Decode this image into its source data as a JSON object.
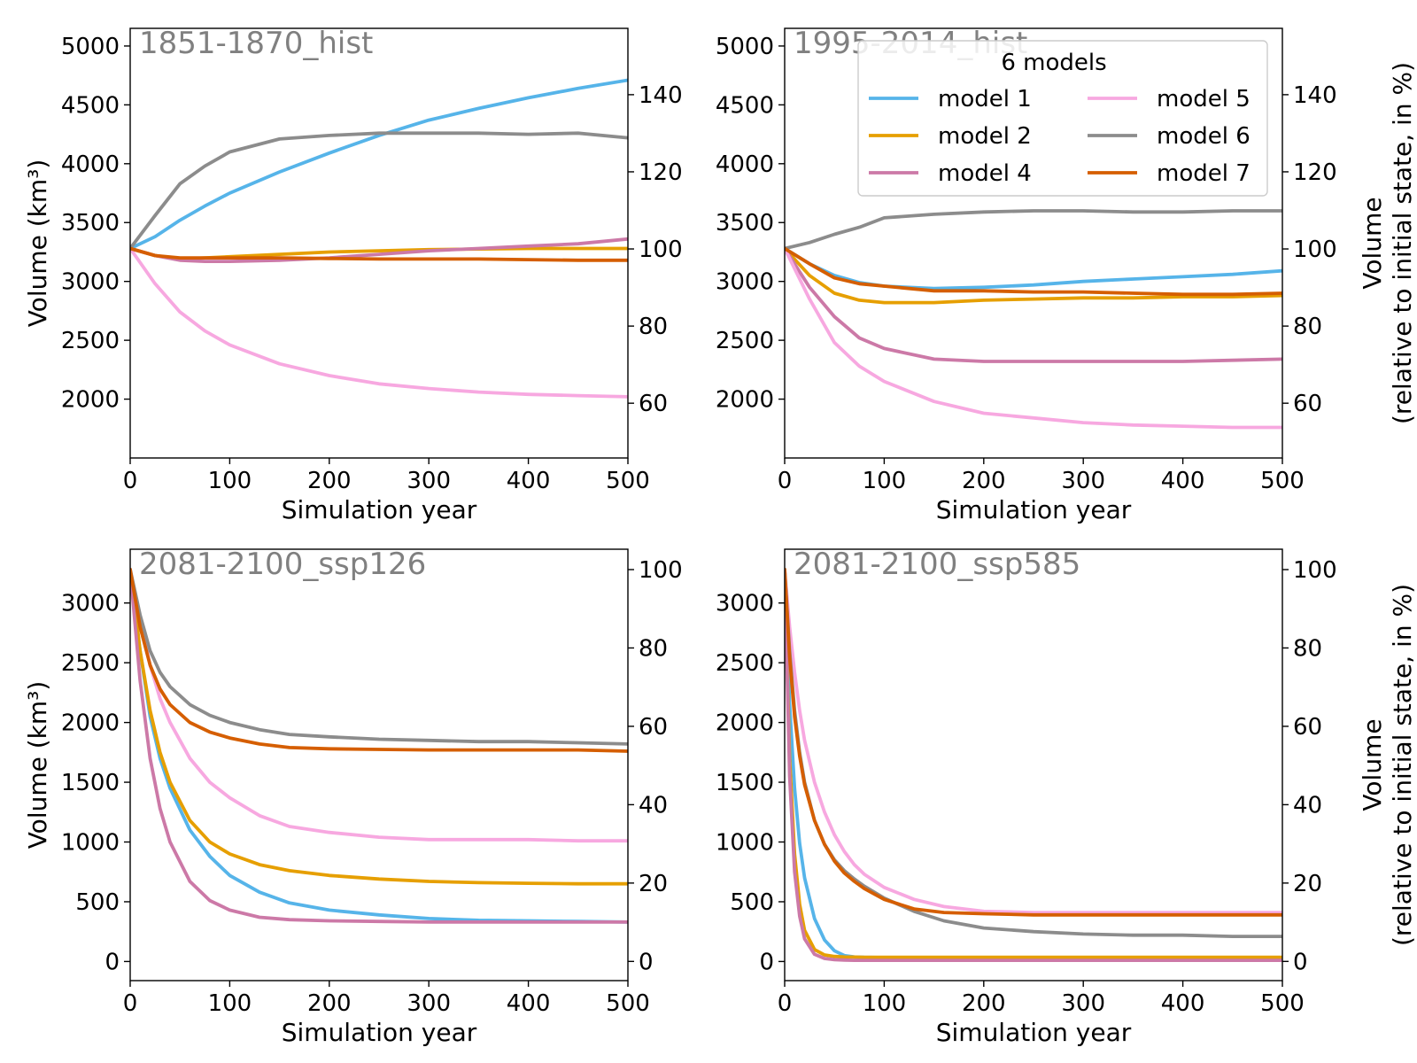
{
  "chart_data": [
    {
      "type": "line",
      "title": "1851-1870_hist",
      "xlabel": "Simulation year",
      "ylabel": "Volume (km³)",
      "ylabel_right": "",
      "xlim": [
        0,
        500
      ],
      "ylim": [
        1500,
        5150
      ],
      "ylim_right": [
        45.8,
        157.2
      ],
      "xticks": [
        0,
        100,
        200,
        300,
        400,
        500
      ],
      "yticks": [
        2000,
        2500,
        3000,
        3500,
        4000,
        4500,
        5000
      ],
      "yticks_right": [
        60,
        80,
        100,
        120,
        140
      ],
      "grid": false,
      "x": [
        0,
        25,
        50,
        75,
        100,
        150,
        200,
        250,
        300,
        350,
        400,
        450,
        500
      ],
      "series": [
        {
          "name": "model 1",
          "color": "#56b4e9",
          "values": [
            3280,
            3380,
            3520,
            3640,
            3750,
            3930,
            4090,
            4240,
            4370,
            4470,
            4560,
            4640,
            4710
          ]
        },
        {
          "name": "model 2",
          "color": "#e69f00",
          "values": [
            3280,
            3220,
            3190,
            3200,
            3210,
            3230,
            3250,
            3260,
            3270,
            3275,
            3280,
            3280,
            3280
          ]
        },
        {
          "name": "model 4",
          "color": "#cc79a7",
          "values": [
            3280,
            3220,
            3180,
            3170,
            3170,
            3180,
            3200,
            3230,
            3260,
            3280,
            3300,
            3320,
            3360
          ]
        },
        {
          "name": "model 5",
          "color": "#f7a8e0",
          "values": [
            3280,
            2980,
            2740,
            2580,
            2460,
            2300,
            2200,
            2130,
            2090,
            2060,
            2040,
            2030,
            2020
          ]
        },
        {
          "name": "model 6",
          "color": "#8c8c8c",
          "values": [
            3280,
            3560,
            3830,
            3980,
            4100,
            4210,
            4240,
            4260,
            4260,
            4260,
            4250,
            4260,
            4220
          ]
        },
        {
          "name": "model 7",
          "color": "#d55e00",
          "values": [
            3280,
            3220,
            3200,
            3200,
            3200,
            3200,
            3195,
            3190,
            3190,
            3190,
            3185,
            3180,
            3180
          ]
        }
      ]
    },
    {
      "type": "line",
      "title": "1995-2014_hist",
      "xlabel": "Simulation year",
      "ylabel": "",
      "ylabel_right": "Volume\n(relative to initial state, in %)",
      "xlim": [
        0,
        500
      ],
      "ylim": [
        1500,
        5150
      ],
      "ylim_right": [
        45.8,
        157.2
      ],
      "xticks": [
        0,
        100,
        200,
        300,
        400,
        500
      ],
      "yticks": [
        2000,
        2500,
        3000,
        3500,
        4000,
        4500,
        5000
      ],
      "yticks_right": [
        60,
        80,
        100,
        120,
        140
      ],
      "grid": false,
      "x": [
        0,
        25,
        50,
        75,
        100,
        150,
        200,
        250,
        300,
        350,
        400,
        450,
        500
      ],
      "series": [
        {
          "name": "model 1",
          "color": "#56b4e9",
          "values": [
            3280,
            3150,
            3050,
            2990,
            2960,
            2940,
            2950,
            2970,
            3000,
            3020,
            3040,
            3060,
            3090
          ]
        },
        {
          "name": "model 2",
          "color": "#e69f00",
          "values": [
            3280,
            3050,
            2900,
            2840,
            2820,
            2820,
            2840,
            2850,
            2860,
            2860,
            2870,
            2870,
            2880
          ]
        },
        {
          "name": "model 4",
          "color": "#cc79a7",
          "values": [
            3280,
            2950,
            2700,
            2520,
            2430,
            2340,
            2320,
            2320,
            2320,
            2320,
            2320,
            2330,
            2340
          ]
        },
        {
          "name": "model 5",
          "color": "#f7a8e0",
          "values": [
            3280,
            2850,
            2480,
            2280,
            2150,
            1980,
            1880,
            1840,
            1800,
            1780,
            1770,
            1760,
            1760
          ]
        },
        {
          "name": "model 6",
          "color": "#8c8c8c",
          "values": [
            3280,
            3330,
            3400,
            3460,
            3540,
            3570,
            3590,
            3600,
            3600,
            3590,
            3590,
            3600,
            3600
          ]
        },
        {
          "name": "model 7",
          "color": "#d55e00",
          "values": [
            3280,
            3150,
            3030,
            2980,
            2960,
            2920,
            2920,
            2910,
            2910,
            2900,
            2890,
            2890,
            2900
          ]
        }
      ]
    },
    {
      "type": "line",
      "title": "2081-2100_ssp126",
      "xlabel": "Simulation year",
      "ylabel": "Volume (km³)",
      "ylabel_right": "",
      "xlim": [
        0,
        500
      ],
      "ylim": [
        -160,
        3450
      ],
      "ylim_right": [
        -4.9,
        105.2
      ],
      "xticks": [
        0,
        100,
        200,
        300,
        400,
        500
      ],
      "yticks": [
        0,
        500,
        1000,
        1500,
        2000,
        2500,
        3000
      ],
      "yticks_right": [
        0,
        20,
        40,
        60,
        80,
        100
      ],
      "grid": false,
      "x": [
        0,
        10,
        20,
        30,
        40,
        60,
        80,
        100,
        130,
        160,
        200,
        250,
        300,
        350,
        400,
        450,
        500
      ],
      "series": [
        {
          "name": "model 1",
          "color": "#56b4e9",
          "values": [
            3280,
            2600,
            2050,
            1700,
            1450,
            1100,
            880,
            720,
            580,
            490,
            430,
            390,
            360,
            345,
            340,
            335,
            330
          ]
        },
        {
          "name": "model 2",
          "color": "#e69f00",
          "values": [
            3280,
            2600,
            2100,
            1750,
            1500,
            1180,
            1000,
            900,
            810,
            760,
            720,
            690,
            670,
            660,
            655,
            650,
            650
          ]
        },
        {
          "name": "model 4",
          "color": "#cc79a7",
          "values": [
            3280,
            2350,
            1700,
            1280,
            1000,
            670,
            510,
            430,
            370,
            350,
            340,
            335,
            330,
            330,
            330,
            330,
            330
          ]
        },
        {
          "name": "model 5",
          "color": "#f7a8e0",
          "values": [
            3280,
            2850,
            2480,
            2200,
            2000,
            1700,
            1500,
            1370,
            1220,
            1130,
            1080,
            1040,
            1020,
            1020,
            1020,
            1010,
            1010
          ]
        },
        {
          "name": "model 6",
          "color": "#8c8c8c",
          "values": [
            3280,
            2900,
            2600,
            2420,
            2300,
            2150,
            2060,
            2000,
            1940,
            1900,
            1880,
            1860,
            1850,
            1840,
            1840,
            1830,
            1820
          ]
        },
        {
          "name": "model 7",
          "color": "#d55e00",
          "values": [
            3280,
            2800,
            2480,
            2280,
            2150,
            2000,
            1920,
            1870,
            1820,
            1790,
            1780,
            1775,
            1770,
            1770,
            1770,
            1770,
            1760
          ]
        }
      ]
    },
    {
      "type": "line",
      "title": "2081-2100_ssp585",
      "xlabel": "Simulation year",
      "ylabel": "",
      "ylabel_right": "Volume\n(relative to initial state, in %)",
      "xlim": [
        0,
        500
      ],
      "ylim": [
        -160,
        3450
      ],
      "ylim_right": [
        -4.9,
        105.2
      ],
      "xticks": [
        0,
        100,
        200,
        300,
        400,
        500
      ],
      "yticks": [
        0,
        500,
        1000,
        1500,
        2000,
        2500,
        3000
      ],
      "yticks_right": [
        0,
        20,
        40,
        60,
        80,
        100
      ],
      "grid": false,
      "x": [
        0,
        5,
        10,
        15,
        20,
        30,
        40,
        50,
        60,
        70,
        80,
        100,
        130,
        160,
        200,
        250,
        300,
        350,
        400,
        450,
        500
      ],
      "series": [
        {
          "name": "model 1",
          "color": "#56b4e9",
          "values": [
            3280,
            2150,
            1450,
            990,
            700,
            360,
            180,
            90,
            50,
            38,
            35,
            33,
            33,
            33,
            33,
            33,
            33,
            33,
            33,
            33,
            33
          ]
        },
        {
          "name": "model 2",
          "color": "#e69f00",
          "values": [
            3280,
            1700,
            900,
            480,
            260,
            100,
            55,
            42,
            38,
            37,
            36,
            36,
            36,
            36,
            36,
            36,
            36,
            36,
            36,
            36,
            36
          ]
        },
        {
          "name": "model 4",
          "color": "#cc79a7",
          "values": [
            3280,
            1550,
            750,
            380,
            190,
            60,
            25,
            15,
            12,
            10,
            10,
            10,
            10,
            10,
            10,
            10,
            10,
            10,
            10,
            10,
            10
          ]
        },
        {
          "name": "model 5",
          "color": "#f7a8e0",
          "values": [
            3280,
            2800,
            2420,
            2100,
            1850,
            1500,
            1250,
            1060,
            920,
            810,
            730,
            620,
            520,
            460,
            420,
            410,
            410,
            410,
            410,
            410,
            410
          ]
        },
        {
          "name": "model 6",
          "color": "#8c8c8c",
          "values": [
            3280,
            2600,
            2100,
            1750,
            1500,
            1180,
            980,
            850,
            760,
            690,
            630,
            530,
            420,
            340,
            280,
            250,
            230,
            220,
            220,
            210,
            210
          ]
        },
        {
          "name": "model 7",
          "color": "#d55e00",
          "values": [
            3280,
            2550,
            2050,
            1720,
            1480,
            1180,
            980,
            840,
            740,
            670,
            610,
            520,
            440,
            410,
            400,
            390,
            390,
            390,
            390,
            390,
            390
          ]
        }
      ]
    }
  ],
  "legend": {
    "title": "6 models",
    "entries": [
      {
        "label": "model 1",
        "color": "#56b4e9"
      },
      {
        "label": "model 2",
        "color": "#e69f00"
      },
      {
        "label": "model 4",
        "color": "#cc79a7"
      },
      {
        "label": "model 5",
        "color": "#f7a8e0"
      },
      {
        "label": "model 6",
        "color": "#8c8c8c"
      },
      {
        "label": "model 7",
        "color": "#d55e00"
      }
    ],
    "placement": "top-right of panel 2"
  }
}
